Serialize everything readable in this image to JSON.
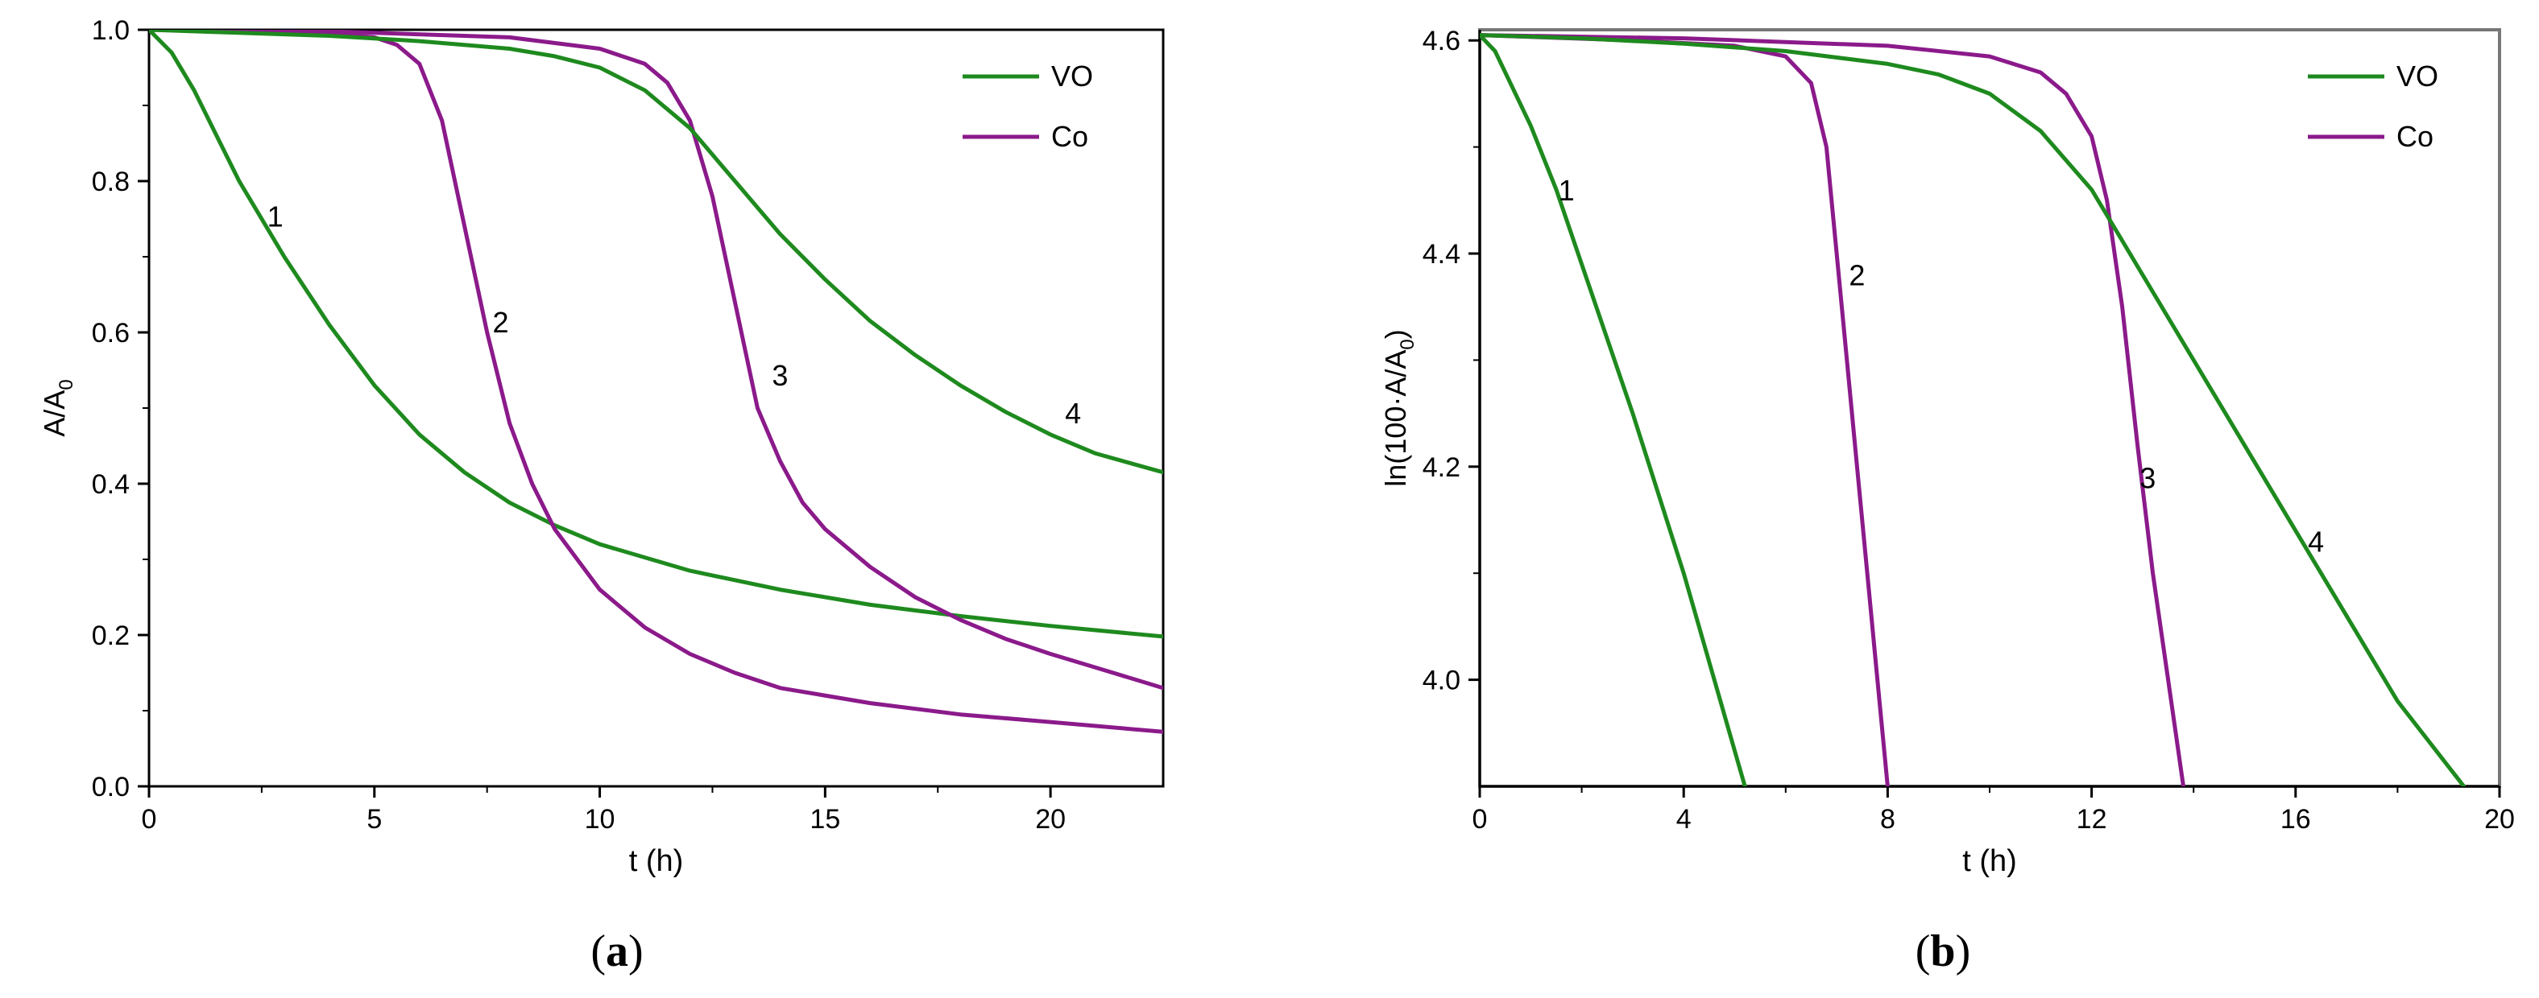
{
  "colors": {
    "vo": "#1e8a1e",
    "co": "#8b1a8b",
    "axis": "#000000",
    "frame_b": "#777777"
  },
  "chart_data": [
    {
      "type": "line",
      "panel_caption": {
        "open": "(",
        "letter": "a",
        "close": ")"
      },
      "title": "",
      "xlabel": "t (h)",
      "ylabel": {
        "base": "A/A",
        "sub": "0"
      },
      "xlim": [
        0,
        22.5
      ],
      "ylim": [
        0,
        1.0
      ],
      "xticks": [
        0,
        5,
        10,
        15,
        20
      ],
      "xtick_labels": [
        "0",
        "5",
        "10",
        "15",
        "20"
      ],
      "yticks": [
        0,
        0.2,
        0.4,
        0.6,
        0.8,
        1.0
      ],
      "ytick_labels": [
        "0.0",
        "0.2",
        "0.4",
        "0.6",
        "0.8",
        "1.0"
      ],
      "grid": false,
      "legend": {
        "position": "top-right",
        "entries": [
          {
            "label": "VO",
            "color_key": "vo"
          },
          {
            "label": "Co",
            "color_key": "co"
          }
        ]
      },
      "series": [
        {
          "name": "1",
          "legend_group": "VO",
          "color_key": "vo",
          "x": [
            0,
            0.5,
            1,
            1.5,
            2,
            3,
            4,
            5,
            6,
            7,
            8,
            9,
            10,
            12,
            14,
            16,
            18,
            20,
            22.5
          ],
          "y": [
            1.0,
            0.97,
            0.92,
            0.86,
            0.8,
            0.7,
            0.61,
            0.53,
            0.465,
            0.415,
            0.375,
            0.345,
            0.32,
            0.285,
            0.26,
            0.24,
            0.225,
            0.212,
            0.198
          ],
          "label": "1",
          "label_pos": [
            2.8,
            0.74
          ]
        },
        {
          "name": "2",
          "legend_group": "Co",
          "color_key": "co",
          "x": [
            0,
            2,
            4,
            5,
            5.5,
            6,
            6.5,
            7,
            7.5,
            8,
            8.5,
            9,
            10,
            11,
            12,
            13,
            14,
            16,
            18,
            20,
            22.5
          ],
          "y": [
            1.0,
            0.998,
            0.995,
            0.99,
            0.98,
            0.955,
            0.88,
            0.74,
            0.6,
            0.48,
            0.4,
            0.34,
            0.26,
            0.21,
            0.175,
            0.15,
            0.13,
            0.11,
            0.095,
            0.085,
            0.072
          ],
          "label": "2",
          "label_pos": [
            7.8,
            0.6
          ]
        },
        {
          "name": "3",
          "legend_group": "Co",
          "color_key": "co",
          "x": [
            0,
            4,
            8,
            10,
            11,
            11.5,
            12,
            12.5,
            13,
            13.5,
            14,
            14.5,
            15,
            16,
            17,
            18,
            19,
            20,
            21,
            22.5
          ],
          "y": [
            1.0,
            0.998,
            0.99,
            0.975,
            0.955,
            0.93,
            0.88,
            0.78,
            0.64,
            0.5,
            0.43,
            0.375,
            0.34,
            0.29,
            0.25,
            0.22,
            0.195,
            0.175,
            0.157,
            0.13
          ],
          "label": "3",
          "label_pos": [
            14.0,
            0.53
          ]
        },
        {
          "name": "4",
          "legend_group": "VO",
          "color_key": "vo",
          "x": [
            0,
            2,
            4,
            6,
            8,
            9,
            10,
            11,
            12,
            13,
            14,
            15,
            16,
            17,
            18,
            19,
            20,
            21,
            22.5
          ],
          "y": [
            1.0,
            0.996,
            0.992,
            0.985,
            0.975,
            0.965,
            0.95,
            0.92,
            0.87,
            0.8,
            0.73,
            0.67,
            0.615,
            0.57,
            0.53,
            0.495,
            0.465,
            0.44,
            0.415
          ],
          "label": "4",
          "label_pos": [
            20.5,
            0.48
          ]
        }
      ]
    },
    {
      "type": "line",
      "panel_caption": {
        "open": "(",
        "letter": "b",
        "close": ")"
      },
      "title": "",
      "xlabel": "t (h)",
      "ylabel": {
        "base": "ln(100·A/A",
        "sub": "0",
        "close": ")"
      },
      "xlim": [
        0,
        20
      ],
      "ylim": [
        3.9,
        4.61
      ],
      "xticks": [
        0,
        4,
        8,
        12,
        16,
        20
      ],
      "xtick_labels": [
        "0",
        "4",
        "8",
        "12",
        "16",
        "20"
      ],
      "yticks": [
        4.0,
        4.2,
        4.4,
        4.6
      ],
      "ytick_labels": [
        "4.0",
        "4.2",
        "4.4",
        "4.6"
      ],
      "grid": false,
      "legend": {
        "position": "top-right",
        "entries": [
          {
            "label": "VO",
            "color_key": "vo"
          },
          {
            "label": "Co",
            "color_key": "co"
          }
        ]
      },
      "series": [
        {
          "name": "1",
          "legend_group": "VO",
          "color_key": "vo",
          "x": [
            0,
            0.3,
            0.6,
            1.0,
            1.5,
            2,
            3,
            4,
            5.2
          ],
          "y": [
            4.605,
            4.59,
            4.56,
            4.52,
            4.46,
            4.39,
            4.25,
            4.1,
            3.9
          ],
          "label": "1",
          "label_pos": [
            1.7,
            4.45
          ]
        },
        {
          "name": "2",
          "legend_group": "Co",
          "color_key": "co",
          "x": [
            0,
            3,
            5,
            6,
            6.5,
            6.8,
            7.0,
            7.2,
            7.4,
            7.6,
            7.8,
            8.0
          ],
          "y": [
            4.605,
            4.6,
            4.595,
            4.585,
            4.56,
            4.5,
            4.4,
            4.3,
            4.2,
            4.1,
            4.0,
            3.9
          ],
          "label": "2",
          "label_pos": [
            7.4,
            4.37
          ]
        },
        {
          "name": "3",
          "legend_group": "Co",
          "color_key": "co",
          "x": [
            0,
            4,
            8,
            10,
            11,
            11.5,
            12,
            12.3,
            12.6,
            12.9,
            13.2,
            13.5,
            13.8
          ],
          "y": [
            4.605,
            4.602,
            4.595,
            4.585,
            4.57,
            4.55,
            4.51,
            4.45,
            4.35,
            4.22,
            4.1,
            4.0,
            3.9
          ],
          "label": "3",
          "label_pos": [
            13.1,
            4.18
          ]
        },
        {
          "name": "4",
          "legend_group": "VO",
          "color_key": "vo",
          "x": [
            0,
            2,
            4,
            6,
            8,
            9,
            10,
            11,
            12,
            12.5,
            13,
            14,
            15,
            16,
            17,
            18,
            19.3
          ],
          "y": [
            4.605,
            4.602,
            4.597,
            4.59,
            4.578,
            4.568,
            4.55,
            4.515,
            4.46,
            4.42,
            4.38,
            4.3,
            4.22,
            4.14,
            4.06,
            3.98,
            3.9
          ],
          "label": "4",
          "label_pos": [
            16.4,
            4.12
          ]
        }
      ]
    }
  ]
}
